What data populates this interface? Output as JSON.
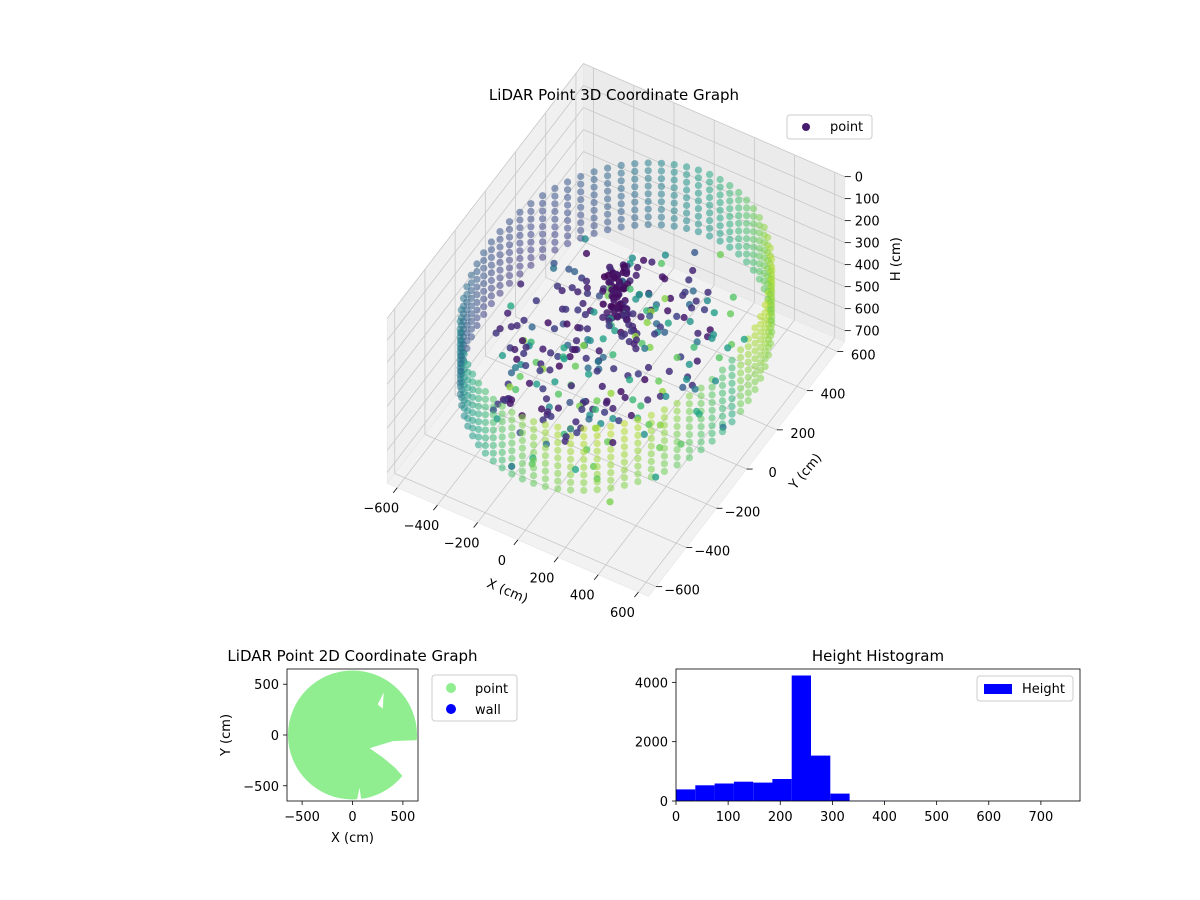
{
  "chart_data": [
    {
      "type": "scatter3d",
      "title": "LiDAR Point 3D Coordinate Graph",
      "xlabel": "X (cm)",
      "ylabel": "Y (cm)",
      "zlabel": "H (cm)",
      "xlim": [
        -650,
        650
      ],
      "ylim": [
        -650,
        650
      ],
      "zlim": [
        0,
        750
      ],
      "z_inverted": true,
      "xticks": [
        -600,
        -400,
        -200,
        0,
        200,
        400,
        600
      ],
      "yticks": [
        -600,
        -400,
        -200,
        0,
        200,
        400,
        600
      ],
      "zticks": [
        0,
        100,
        200,
        300,
        400,
        500,
        600,
        700
      ],
      "legend": [
        "point"
      ],
      "legend_position": "upper right",
      "colormap": "viridis",
      "grid": true,
      "series": [
        {
          "name": "point",
          "structure": [
            {
              "shape": "cylindrical wall",
              "radius": 620,
              "h_range": [
                220,
                500
              ]
            },
            {
              "shape": "central column",
              "x": 0,
              "y": 0,
              "h_range": [
                100,
                320
              ]
            },
            {
              "shape": "scattered floor points",
              "h_range": [
                300,
                720
              ]
            }
          ]
        }
      ]
    },
    {
      "type": "scatter",
      "title": "LiDAR Point 2D Coordinate Graph",
      "xlabel": "X (cm)",
      "ylabel": "Y (cm)",
      "xlim": [
        -650,
        650
      ],
      "ylim": [
        -650,
        650
      ],
      "xticks": [
        -500,
        0,
        500
      ],
      "yticks": [
        -500,
        0,
        500
      ],
      "legend": [
        "point",
        "wall"
      ],
      "legend_position": "outside right",
      "series": [
        {
          "name": "point",
          "color": "#90ee90",
          "shape": "filled disc",
          "radius": 640
        },
        {
          "name": "wall",
          "color": "#0000ff"
        }
      ]
    },
    {
      "type": "bar",
      "title": "Height Histogram",
      "xlim": [
        0,
        775
      ],
      "ylim": [
        0,
        4450
      ],
      "xticks": [
        0,
        100,
        200,
        300,
        400,
        500,
        600,
        700
      ],
      "yticks": [
        0,
        2000,
        4000
      ],
      "bin_width": 37,
      "bin_starts": [
        0,
        37,
        74,
        111,
        148,
        185,
        222,
        259,
        296,
        333,
        370,
        407,
        444,
        481,
        518,
        555,
        592,
        629,
        666,
        703,
        740
      ],
      "values": [
        390,
        530,
        590,
        650,
        620,
        740,
        4230,
        1530,
        250,
        8,
        6,
        5,
        5,
        4,
        4,
        3,
        3,
        3,
        2,
        2,
        2
      ],
      "color": "#0000ff",
      "legend": [
        "Height"
      ],
      "legend_position": "upper right"
    }
  ]
}
